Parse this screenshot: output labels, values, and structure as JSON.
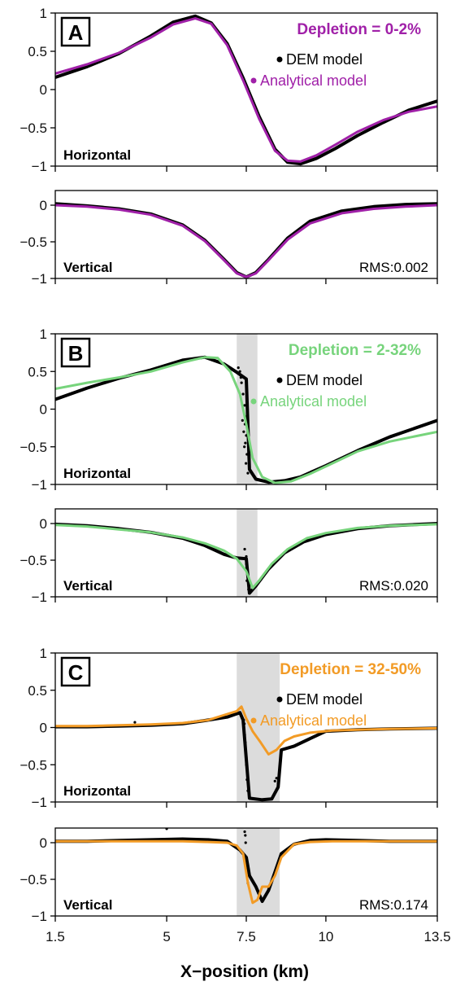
{
  "chart_data": {
    "type": "line",
    "xlabel": "X−position (km)",
    "xlim": [
      1.5,
      13.5
    ],
    "x_ticks": [
      1.5,
      5,
      7.5,
      10,
      13.5
    ],
    "x_tick_labels": [
      "1.5",
      "5",
      "7.5",
      "10",
      "13.5"
    ],
    "legend": {
      "dem_label": "DEM model",
      "analytical_label": "Analytical model",
      "placement": "top-right"
    },
    "panels": [
      {
        "letter": "A",
        "depletion": "Depletion = 0-2%",
        "color": "#a020a8",
        "rms": "RMS:0.002",
        "shade": null,
        "horizontal": {
          "label": "Horizontal",
          "ylim": [
            -1,
            1
          ],
          "y_ticks": [
            1,
            0.5,
            0,
            -0.5,
            -1
          ],
          "y_tick_labels": [
            "1",
            "0.5",
            "0",
            "−0.5",
            "−1"
          ],
          "dem": {
            "x": [
              1.5,
              2.5,
              3.5,
              4.5,
              5.2,
              5.9,
              6.4,
              6.9,
              7.4,
              7.9,
              8.4,
              8.8,
              9.2,
              9.7,
              10.3,
              11,
              11.8,
              12.6,
              13.5
            ],
            "y": [
              0.16,
              0.3,
              0.47,
              0.7,
              0.88,
              0.96,
              0.87,
              0.6,
              0.15,
              -0.35,
              -0.78,
              -0.95,
              -0.97,
              -0.9,
              -0.77,
              -0.6,
              -0.43,
              -0.27,
              -0.15
            ]
          },
          "analytical": {
            "x": [
              1.5,
              2.5,
              3.5,
              4.5,
              5.2,
              5.9,
              6.4,
              6.9,
              7.4,
              7.9,
              8.4,
              8.8,
              9.2,
              9.7,
              10.3,
              11,
              11.8,
              12.6,
              13.5
            ],
            "y": [
              0.21,
              0.33,
              0.48,
              0.68,
              0.85,
              0.93,
              0.86,
              0.58,
              0.12,
              -0.38,
              -0.8,
              -0.93,
              -0.94,
              -0.86,
              -0.72,
              -0.55,
              -0.4,
              -0.29,
              -0.22
            ]
          },
          "dem_scatter": {
            "x": [],
            "y": []
          }
        },
        "vertical": {
          "label": "Vertical",
          "ylim": [
            -1,
            0.2
          ],
          "y_ticks": [
            0,
            -0.5,
            -1
          ],
          "y_tick_labels": [
            "0",
            "−0.5",
            "−1"
          ],
          "dem": {
            "x": [
              1.5,
              2.5,
              3.5,
              4.5,
              5.5,
              6.2,
              6.8,
              7.2,
              7.5,
              7.8,
              8.2,
              8.8,
              9.5,
              10.5,
              11.5,
              12.5,
              13.5
            ],
            "y": [
              0.02,
              -0.01,
              -0.05,
              -0.12,
              -0.27,
              -0.48,
              -0.74,
              -0.92,
              -0.98,
              -0.92,
              -0.74,
              -0.45,
              -0.22,
              -0.08,
              -0.02,
              0.01,
              0.02
            ]
          },
          "analytical": {
            "x": [
              1.5,
              2.5,
              3.5,
              4.5,
              5.5,
              6.2,
              6.8,
              7.2,
              7.5,
              7.8,
              8.2,
              8.8,
              9.5,
              10.5,
              11.5,
              12.5,
              13.5
            ],
            "y": [
              0.0,
              -0.02,
              -0.06,
              -0.13,
              -0.28,
              -0.49,
              -0.75,
              -0.93,
              -0.98,
              -0.93,
              -0.75,
              -0.47,
              -0.25,
              -0.11,
              -0.05,
              -0.02,
              0.0
            ]
          },
          "dem_scatter": {
            "x": [],
            "y": []
          }
        }
      },
      {
        "letter": "B",
        "depletion": "Depletion = 2-32%",
        "color": "#77d47c",
        "rms": "RMS:0.020",
        "shade": [
          7.2,
          7.85
        ],
        "horizontal": {
          "label": "Horizontal",
          "ylim": [
            -1,
            1
          ],
          "y_ticks": [
            1,
            0.5,
            0,
            -0.5,
            -1
          ],
          "y_tick_labels": [
            "1",
            "0.5",
            "0",
            "−0.5",
            "−1"
          ],
          "dem": {
            "x": [
              1.5,
              2.5,
              3.5,
              4.5,
              5.5,
              6.2,
              6.8,
              7.2,
              7.5,
              7.6,
              7.8,
              8.2,
              8.7,
              9.2,
              10,
              11,
              12,
              13.5
            ],
            "y": [
              0.13,
              0.28,
              0.41,
              0.52,
              0.65,
              0.69,
              0.6,
              0.49,
              0.4,
              -0.8,
              -0.93,
              -0.97,
              -0.95,
              -0.9,
              -0.75,
              -0.55,
              -0.37,
              -0.15
            ]
          },
          "analytical": {
            "x": [
              1.5,
              2.5,
              3.5,
              4.5,
              5.5,
              6.2,
              6.6,
              7.0,
              7.3,
              7.5,
              7.7,
              8.0,
              8.4,
              8.9,
              9.5,
              10.2,
              11,
              12,
              13.5
            ],
            "y": [
              0.27,
              0.35,
              0.42,
              0.5,
              0.62,
              0.69,
              0.68,
              0.5,
              0.2,
              -0.2,
              -0.65,
              -0.9,
              -0.98,
              -0.96,
              -0.86,
              -0.72,
              -0.56,
              -0.43,
              -0.3
            ]
          },
          "dem_scatter": {
            "x": [
              7.25,
              7.3,
              7.35,
              7.4,
              7.45,
              7.5,
              7.42,
              7.47,
              7.52,
              7.38,
              7.44,
              7.49,
              7.55,
              7.33,
              7.46,
              7.5
            ],
            "y": [
              0.55,
              0.5,
              0.35,
              0.2,
              0.05,
              -0.1,
              -0.3,
              -0.45,
              -0.6,
              -0.15,
              -0.5,
              -0.72,
              -0.85,
              0.42,
              -0.2,
              -0.35
            ]
          }
        },
        "vertical": {
          "label": "Vertical",
          "ylim": [
            -1,
            0.2
          ],
          "y_ticks": [
            0,
            -0.5,
            -1
          ],
          "y_tick_labels": [
            "0",
            "−0.5",
            "−1"
          ],
          "dem": {
            "x": [
              1.5,
              2.5,
              3.5,
              4.5,
              5.5,
              6.2,
              6.8,
              7.2,
              7.5,
              7.6,
              7.8,
              8.2,
              8.7,
              9.3,
              10,
              11,
              12,
              13.5
            ],
            "y": [
              -0.01,
              -0.03,
              -0.07,
              -0.12,
              -0.2,
              -0.3,
              -0.42,
              -0.47,
              -0.48,
              -0.95,
              -0.85,
              -0.62,
              -0.4,
              -0.25,
              -0.15,
              -0.07,
              -0.03,
              0.0
            ]
          },
          "analytical": {
            "x": [
              1.5,
              2.5,
              3.5,
              4.5,
              5.5,
              6.2,
              6.8,
              7.2,
              7.5,
              7.7,
              7.9,
              8.3,
              8.8,
              9.4,
              10,
              11,
              12,
              13.5
            ],
            "y": [
              -0.02,
              -0.04,
              -0.08,
              -0.12,
              -0.19,
              -0.27,
              -0.37,
              -0.48,
              -0.65,
              -0.88,
              -0.78,
              -0.55,
              -0.35,
              -0.2,
              -0.13,
              -0.06,
              -0.03,
              -0.01
            ]
          },
          "dem_scatter": {
            "x": [
              7.45,
              7.5,
              7.55,
              7.48,
              7.52,
              7.57,
              7.5
            ],
            "y": [
              -0.35,
              -0.55,
              -0.7,
              -0.62,
              -0.78,
              -0.9,
              -0.45
            ]
          }
        }
      },
      {
        "letter": "C",
        "depletion": "Depletion = 32-50%",
        "color": "#f29b26",
        "rms": "RMS:0.174",
        "shade": [
          7.2,
          8.55
        ],
        "horizontal": {
          "label": "Horizontal",
          "ylim": [
            -1,
            1
          ],
          "y_ticks": [
            1,
            0.5,
            0,
            -0.5,
            -1
          ],
          "y_tick_labels": [
            "1",
            "0.5",
            "0",
            "−0.5",
            "−1"
          ],
          "dem": {
            "x": [
              1.5,
              2.5,
              3.5,
              4.5,
              5.5,
              6.3,
              6.9,
              7.3,
              7.4,
              7.6,
              8.0,
              8.3,
              8.5,
              8.6,
              9.0,
              9.5,
              10,
              11,
              12,
              13.5
            ],
            "y": [
              0.01,
              0.01,
              0.02,
              0.03,
              0.05,
              0.1,
              0.14,
              0.2,
              0.1,
              -0.95,
              -0.97,
              -0.96,
              -0.8,
              -0.3,
              -0.25,
              -0.15,
              -0.05,
              -0.03,
              -0.02,
              -0.01
            ]
          },
          "analytical": {
            "x": [
              1.5,
              2.5,
              3.5,
              4.5,
              5.5,
              6.3,
              6.9,
              7.2,
              7.35,
              7.5,
              7.7,
              7.95,
              8.2,
              8.45,
              8.7,
              9.0,
              9.5,
              10.2,
              11,
              12,
              13.5
            ],
            "y": [
              0.02,
              0.02,
              0.03,
              0.04,
              0.06,
              0.1,
              0.18,
              0.22,
              0.28,
              0.12,
              -0.05,
              -0.2,
              -0.36,
              -0.3,
              -0.18,
              -0.12,
              -0.07,
              -0.04,
              -0.03,
              -0.02,
              -0.01
            ]
          },
          "dem_scatter": {
            "x": [
              7.42,
              7.45,
              7.48,
              7.5,
              7.52,
              7.47,
              7.55,
              7.6,
              7.44,
              7.5,
              8.4,
              8.45,
              8.5,
              4.0
            ],
            "y": [
              0.1,
              -0.1,
              -0.3,
              -0.5,
              -0.7,
              -0.2,
              -0.85,
              -0.9,
              0.05,
              -0.4,
              -0.72,
              -0.68,
              -0.75,
              0.07
            ]
          }
        },
        "vertical": {
          "label": "Vertical",
          "ylim": [
            -1,
            0.2
          ],
          "y_ticks": [
            0,
            -0.5,
            -1
          ],
          "y_tick_labels": [
            "0",
            "−0.5",
            "−1"
          ],
          "dem": {
            "x": [
              1.5,
              2.5,
              3.5,
              4.5,
              5.5,
              6.3,
              6.9,
              7.3,
              7.5,
              7.6,
              7.8,
              8.0,
              8.2,
              8.4,
              8.6,
              9.0,
              9.5,
              10,
              11,
              12,
              13.5
            ],
            "y": [
              0.02,
              0.02,
              0.03,
              0.04,
              0.05,
              0.04,
              0.02,
              -0.1,
              -0.2,
              -0.45,
              -0.6,
              -0.8,
              -0.65,
              -0.4,
              -0.15,
              -0.02,
              0.03,
              0.04,
              0.03,
              0.02,
              0.02
            ]
          },
          "analytical": {
            "x": [
              1.5,
              2.5,
              3.5,
              4.5,
              5.5,
              6.3,
              6.9,
              7.2,
              7.4,
              7.55,
              7.7,
              7.85,
              8.0,
              8.2,
              8.4,
              8.6,
              9.0,
              9.5,
              10.2,
              11,
              12,
              13.5
            ],
            "y": [
              0.02,
              0.02,
              0.02,
              0.02,
              0.02,
              0.01,
              0.0,
              -0.04,
              -0.15,
              -0.55,
              -0.82,
              -0.78,
              -0.6,
              -0.6,
              -0.45,
              -0.2,
              -0.02,
              0.01,
              0.02,
              0.02,
              0.02,
              0.02
            ]
          },
          "dem_scatter": {
            "x": [
              7.45,
              7.48,
              7.5,
              7.52,
              7.55,
              7.5,
              7.47,
              5.0
            ],
            "y": [
              0.15,
              0.0,
              -0.2,
              -0.4,
              -0.55,
              -0.3,
              0.1,
              0.19
            ]
          }
        }
      }
    ]
  }
}
